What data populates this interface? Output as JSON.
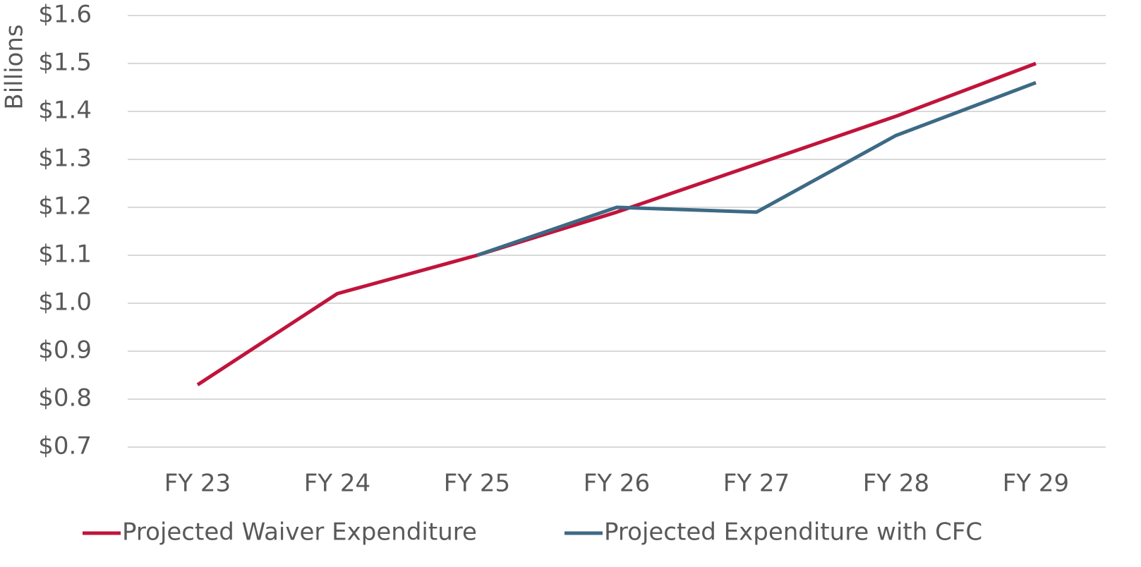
{
  "chart_data": {
    "type": "line",
    "y_axis_label": "Billions",
    "categories": [
      "FY 23",
      "FY 24",
      "FY 25",
      "FY 26",
      "FY 27",
      "FY 28",
      "FY 29"
    ],
    "series": [
      {
        "name": "Projected Waiver Expenditure",
        "color": "#c0143c",
        "values": [
          0.83,
          1.02,
          1.1,
          1.19,
          1.29,
          1.39,
          1.5
        ]
      },
      {
        "name": "Projected Expenditure with CFC",
        "color": "#3d6a85",
        "values": [
          null,
          null,
          1.1,
          1.2,
          1.19,
          1.35,
          1.46
        ]
      }
    ],
    "ylim": [
      0.7,
      1.6
    ],
    "yticks": [
      {
        "value": 0.7,
        "label": "$0.7"
      },
      {
        "value": 0.8,
        "label": "$0.8"
      },
      {
        "value": 0.9,
        "label": "$0.9"
      },
      {
        "value": 1.0,
        "label": "$1.0"
      },
      {
        "value": 1.1,
        "label": "$1.1"
      },
      {
        "value": 1.2,
        "label": "$1.2"
      },
      {
        "value": 1.3,
        "label": "$1.3"
      },
      {
        "value": 1.4,
        "label": "$1.4"
      },
      {
        "value": 1.5,
        "label": "$1.5"
      },
      {
        "value": 1.6,
        "label": "$1.6"
      }
    ],
    "grid": true,
    "legend": "bottom"
  }
}
